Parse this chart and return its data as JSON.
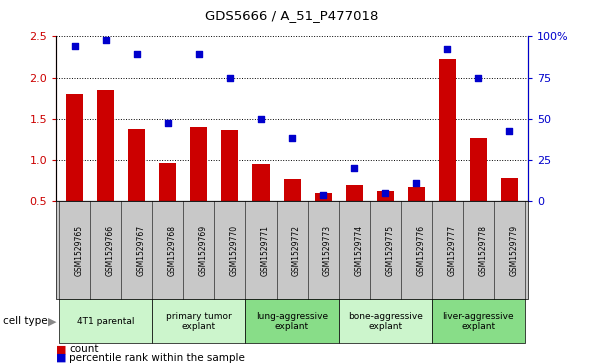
{
  "title": "GDS5666 / A_51_P477018",
  "samples": [
    "GSM1529765",
    "GSM1529766",
    "GSM1529767",
    "GSM1529768",
    "GSM1529769",
    "GSM1529770",
    "GSM1529771",
    "GSM1529772",
    "GSM1529773",
    "GSM1529774",
    "GSM1529775",
    "GSM1529776",
    "GSM1529777",
    "GSM1529778",
    "GSM1529779"
  ],
  "bar_values": [
    1.8,
    1.85,
    1.38,
    0.97,
    1.4,
    1.37,
    0.95,
    0.77,
    0.6,
    0.7,
    0.63,
    0.67,
    2.22,
    1.27,
    0.78
  ],
  "dot_values": [
    2.38,
    2.45,
    2.28,
    1.45,
    2.28,
    2.0,
    1.5,
    1.27,
    0.58,
    0.9,
    0.6,
    0.72,
    2.35,
    2.0,
    1.35
  ],
  "ylim": [
    0.5,
    2.5
  ],
  "yticks": [
    0.5,
    1.0,
    1.5,
    2.0,
    2.5
  ],
  "right_yticks": [
    0,
    25,
    50,
    75,
    100
  ],
  "right_ylabels": [
    "0",
    "25",
    "50",
    "75",
    "100%"
  ],
  "bar_color": "#cc0000",
  "dot_color": "#0000cc",
  "bg_color": "#c8c8c8",
  "cell_type_bg_light": "#ccf5cc",
  "cell_type_bg_mid": "#88dd88",
  "groups": [
    {
      "label": "4T1 parental",
      "indices": [
        0,
        1,
        2
      ],
      "shade": "light"
    },
    {
      "label": "primary tumor\nexplant",
      "indices": [
        3,
        4,
        5
      ],
      "shade": "light"
    },
    {
      "label": "lung-aggressive\nexplant",
      "indices": [
        6,
        7,
        8
      ],
      "shade": "mid"
    },
    {
      "label": "bone-aggressive\nexplant",
      "indices": [
        9,
        10,
        11
      ],
      "shade": "light"
    },
    {
      "label": "liver-aggressive\nexplant",
      "indices": [
        12,
        13,
        14
      ],
      "shade": "mid"
    }
  ]
}
